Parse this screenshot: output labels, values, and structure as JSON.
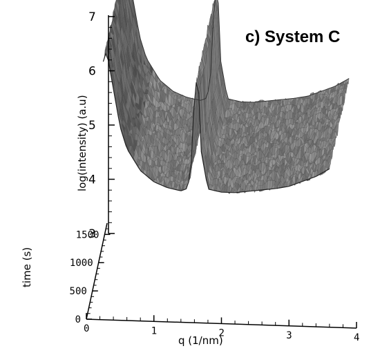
{
  "title": "c) System C",
  "chart_data": {
    "type": "surface",
    "title": "c) System C",
    "xlabel": "q (1/nm)",
    "ylabel": "time (s)",
    "zlabel": "log(intensity) (a.u)",
    "x_ticks": [
      "0",
      "1",
      "2",
      "3",
      "4"
    ],
    "y_ticks": [
      "0",
      "500",
      "1000",
      "1500"
    ],
    "z_ticks": [
      "3",
      "4",
      "5",
      "6",
      "7"
    ],
    "xlim": [
      0,
      4
    ],
    "ylim": [
      0,
      1700
    ],
    "zlim": [
      3,
      7
    ],
    "profile_q": [
      0.25,
      0.3,
      0.4,
      0.5,
      0.6,
      0.8,
      1.0,
      1.2,
      1.4,
      1.5,
      1.55,
      1.6,
      1.65,
      1.7,
      1.8,
      2.0,
      2.2,
      2.5,
      2.8,
      3.0,
      3.2,
      3.4,
      3.6
    ],
    "profile_log_intensity": [
      6.2,
      6.4,
      5.7,
      5.0,
      4.6,
      4.2,
      4.0,
      3.9,
      3.85,
      3.9,
      4.3,
      5.6,
      6.1,
      4.6,
      3.9,
      3.85,
      3.85,
      3.9,
      3.95,
      4.0,
      4.1,
      4.2,
      4.35
    ],
    "peak": {
      "q": 1.65,
      "log_intensity": 6.1
    }
  }
}
